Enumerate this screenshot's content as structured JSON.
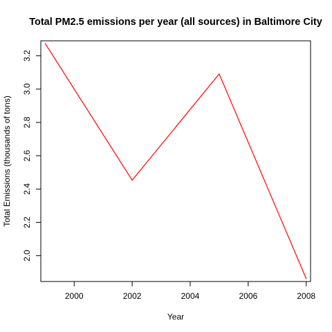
{
  "chart_data": {
    "type": "line",
    "title": "Total PM2.5 emissions per year (all sources) in Baltimore City",
    "xlabel": "Year",
    "ylabel": "Total Emissions (thousands of tons)",
    "x": [
      1999,
      2002,
      2005,
      2008
    ],
    "series": [
      {
        "values": [
          3.274,
          2.453,
          3.091,
          1.862
        ],
        "color": "#ff0000"
      }
    ],
    "xlim": [
      1998.85,
      2008.15
    ],
    "ylim": [
      1.845,
      3.29
    ],
    "xticks": [
      2000,
      2002,
      2004,
      2006,
      2008
    ],
    "yticks": [
      2.0,
      2.2,
      2.4,
      2.6,
      2.8,
      3.0,
      3.2
    ],
    "xtick_labels": [
      "2000",
      "2002",
      "2004",
      "2006",
      "2008"
    ],
    "ytick_labels": [
      "2.0",
      "2.2",
      "2.4",
      "2.6",
      "2.8",
      "3.0",
      "3.2"
    ],
    "grid": false,
    "legend": false,
    "box": true
  }
}
